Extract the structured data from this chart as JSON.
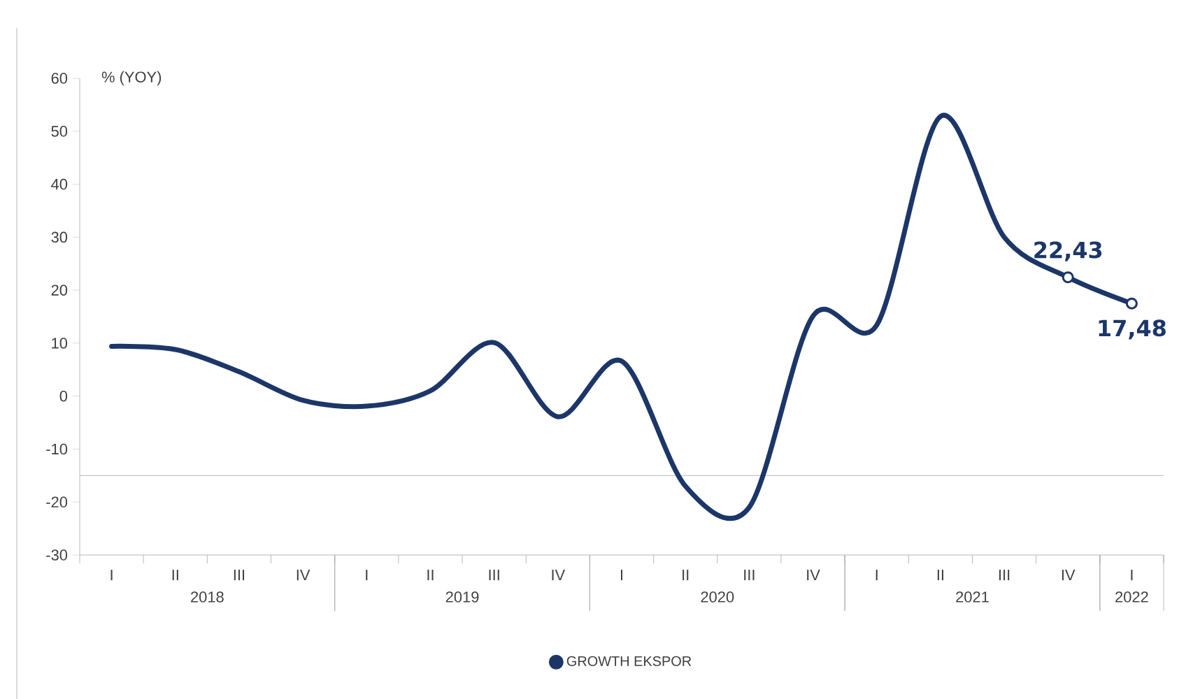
{
  "chart_data": {
    "type": "line",
    "ylabel": "% (YOY)",
    "categories": [
      "I",
      "II",
      "III",
      "IV",
      "I",
      "II",
      "III",
      "IV",
      "I",
      "II",
      "III",
      "IV",
      "I",
      "II",
      "III",
      "IV",
      "I"
    ],
    "annotations": [
      "2018",
      "2019",
      "2020",
      "2021",
      "2022"
    ],
    "series": [
      {
        "name": "GROWTH EKSPOR",
        "color": "#1c3668",
        "values": [
          9.4,
          8.8,
          4.6,
          -0.8,
          -1.9,
          1.0,
          10.1,
          -3.9,
          6.6,
          -17,
          -21,
          15.1,
          13.4,
          52.8,
          30,
          22.43,
          17.48
        ],
        "value_labels": [
          null,
          null,
          null,
          null,
          null,
          null,
          null,
          null,
          null,
          null,
          null,
          null,
          null,
          null,
          null,
          "22,43",
          "17,48"
        ]
      }
    ],
    "ylim": [
      -30,
      60
    ],
    "yticks": [
      -30,
      -20,
      -10,
      0,
      10,
      20,
      30,
      40,
      50,
      60
    ],
    "ref_lines": [
      {
        "axis": "y",
        "value": -15,
        "color": "#a6a6a6"
      }
    ],
    "legend": "bottom"
  }
}
